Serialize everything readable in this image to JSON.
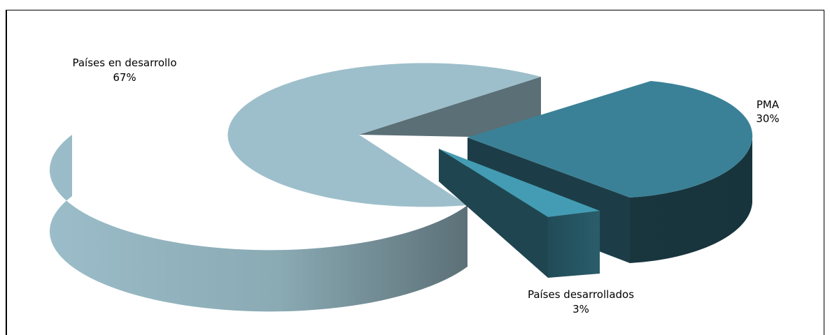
{
  "chart_data": {
    "type": "pie",
    "style": "3d-exploded",
    "slices": [
      {
        "label": "Países en desarrollo",
        "value": 67,
        "value_label": "67%",
        "color": "#9bbdc9",
        "side_color": "#5a6f76"
      },
      {
        "label": "PMA",
        "value": 30,
        "value_label": "30%",
        "color": "#3a8197",
        "side_color": "#19363f"
      },
      {
        "label": "Países desarrollados",
        "value": 3,
        "value_label": "3%",
        "color": "#439cb3",
        "side_color": "#1f4650"
      }
    ],
    "legend": "none"
  }
}
